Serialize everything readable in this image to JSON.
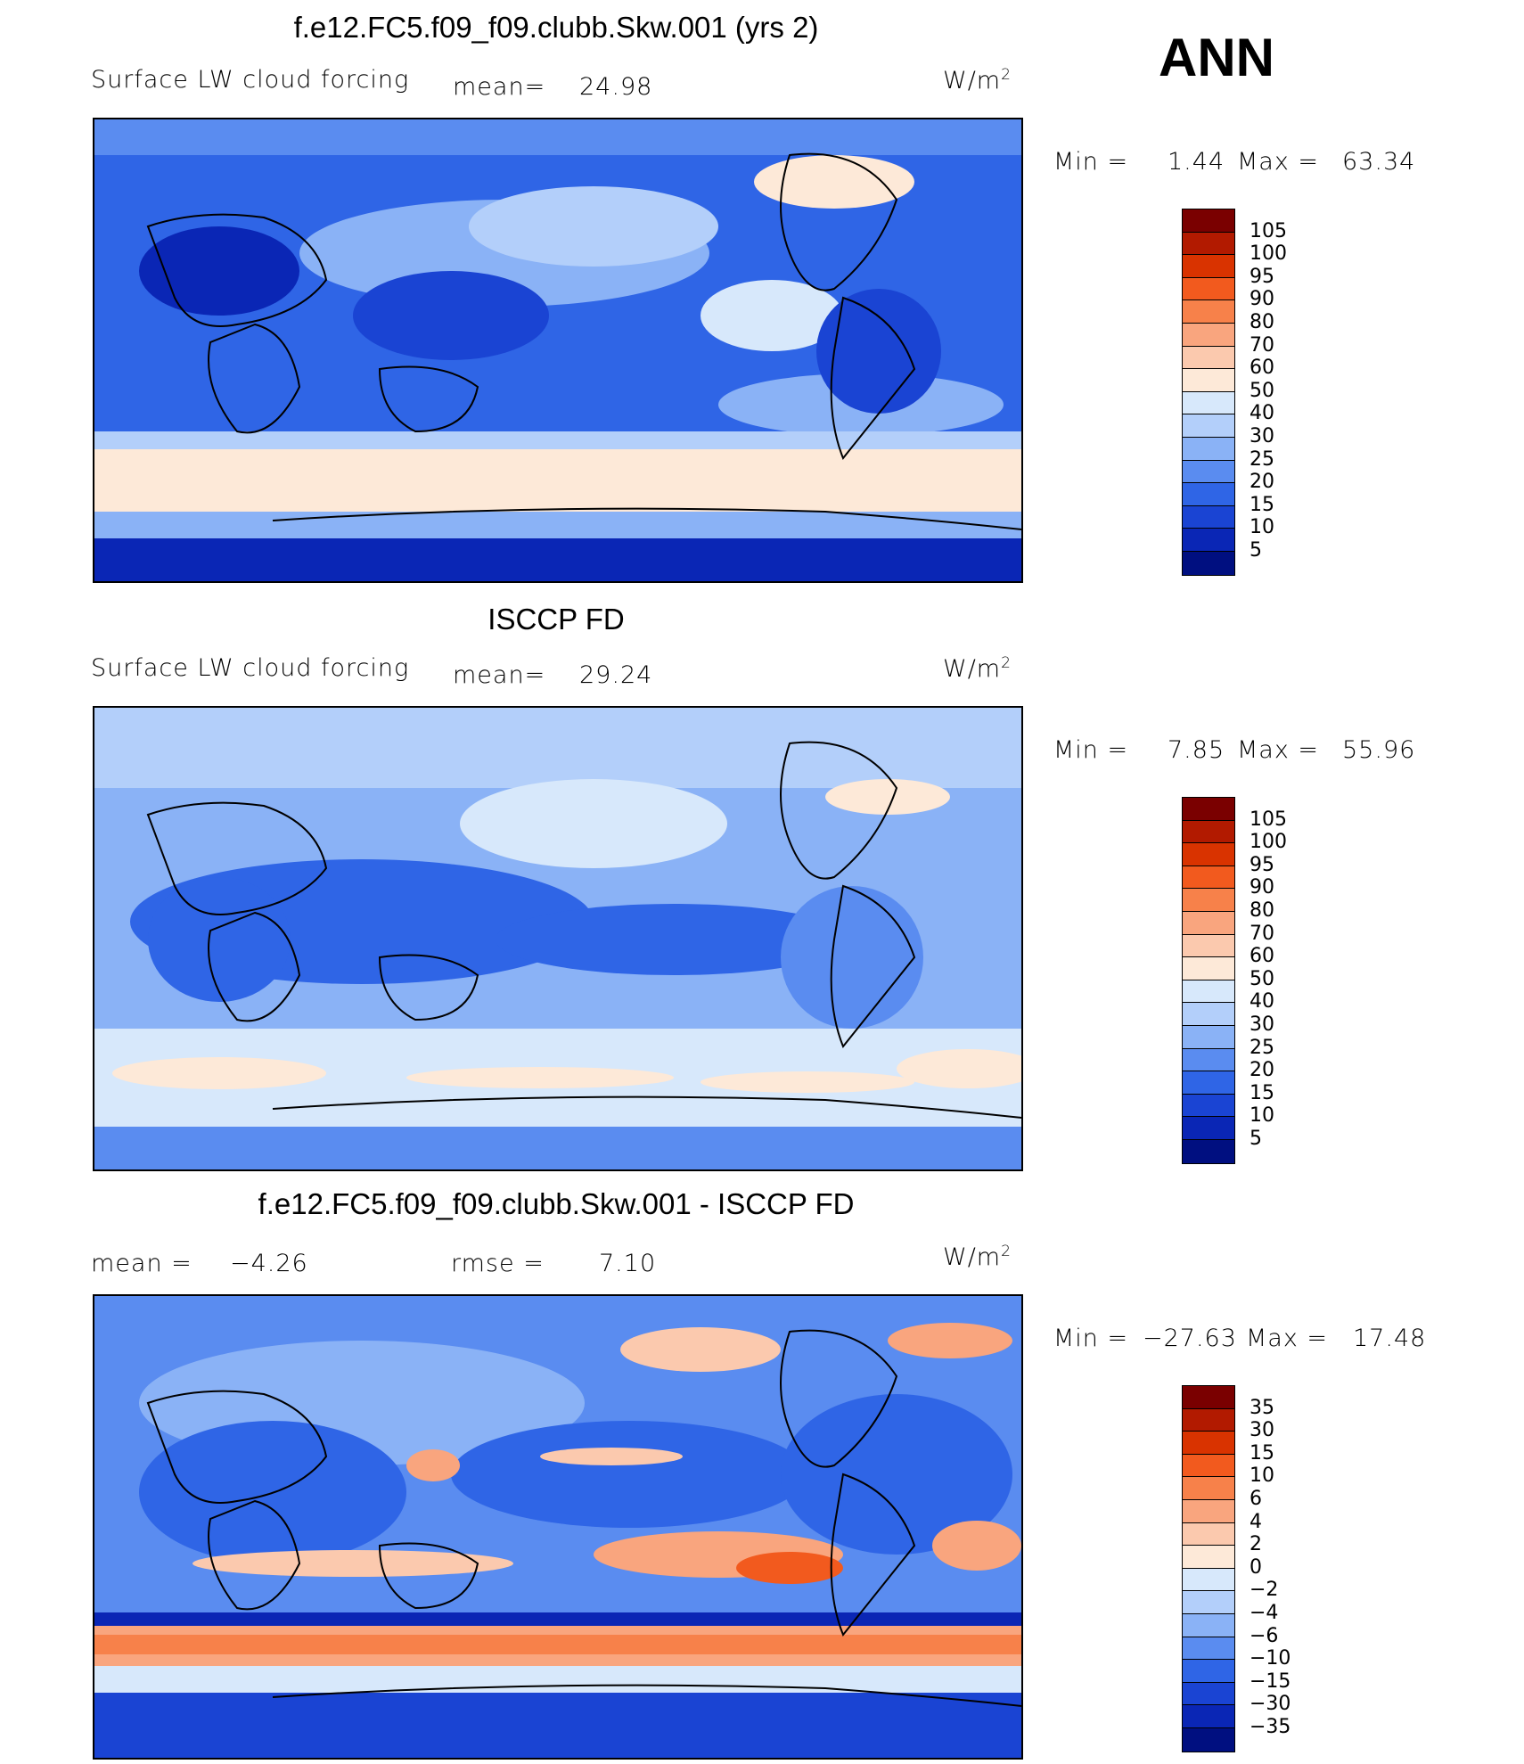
{
  "season": "ANN",
  "panels": [
    {
      "id": "model",
      "title": "f.e12.FC5.f09_f09.clubb.Skw.001 (yrs 2)",
      "variable": "Surface LW cloud forcing",
      "mean_label": "mean=",
      "mean_value": "24.98",
      "units": "W/m",
      "units_exp": "2",
      "min_label": "Min =",
      "min_value": "1.44",
      "max_label": "Max =",
      "max_value": "63.34",
      "colorbar_labels": [
        "105",
        "100",
        "95",
        "90",
        "80",
        "70",
        "60",
        "50",
        "40",
        "30",
        "25",
        "20",
        "15",
        "10",
        "5"
      ]
    },
    {
      "id": "obs",
      "title": "ISCCP FD",
      "variable": "Surface LW cloud forcing",
      "mean_label": "mean=",
      "mean_value": "29.24",
      "units": "W/m",
      "units_exp": "2",
      "min_label": "Min =",
      "min_value": "7.85",
      "max_label": "Max =",
      "max_value": "55.96",
      "colorbar_labels": [
        "105",
        "100",
        "95",
        "90",
        "80",
        "70",
        "60",
        "50",
        "40",
        "30",
        "25",
        "20",
        "15",
        "10",
        "5"
      ]
    },
    {
      "id": "diff",
      "title": "f.e12.FC5.f09_f09.clubb.Skw.001 - ISCCP FD",
      "mean_label": "mean =",
      "mean_value": "−4.26",
      "rmse_label": "rmse =",
      "rmse_value": "7.10",
      "units": "W/m",
      "units_exp": "2",
      "min_label": "Min =",
      "min_value": "−27.63",
      "max_label": "Max =",
      "max_value": "17.48",
      "colorbar_labels": [
        "35",
        "30",
        "15",
        "10",
        "6",
        "4",
        "2",
        "0",
        "−2",
        "−4",
        "−6",
        "−10",
        "−15",
        "−30",
        "−35"
      ]
    }
  ],
  "colors": {
    "scale": [
      "#7a0000",
      "#b21a00",
      "#d93300",
      "#f25a1e",
      "#f7814a",
      "#f9a57e",
      "#fbc9ae",
      "#fde9d8",
      "#d7e8fb",
      "#b3cffa",
      "#8ab2f6",
      "#5a8cf0",
      "#2f65e6",
      "#1a44d3",
      "#0a26b5",
      "#000f80"
    ]
  }
}
